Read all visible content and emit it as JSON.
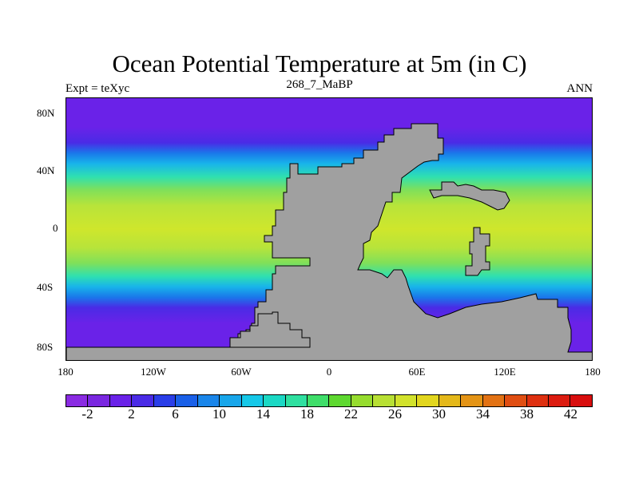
{
  "title": "Ocean Potential Temperature at 5m (in C)",
  "subtitle_left": "Expt = teXyc",
  "subtitle_center": "268_7_MaBP",
  "subtitle_right": "ANN",
  "y_ticks": [
    "80N",
    "40N",
    "0",
    "40S",
    "80S"
  ],
  "x_ticks": [
    "180",
    "120W",
    "60W",
    "0",
    "60E",
    "120E",
    "180"
  ],
  "colorbar": {
    "labels": [
      "-2",
      "2",
      "6",
      "10",
      "14",
      "18",
      "22",
      "26",
      "30",
      "34",
      "38",
      "42"
    ],
    "colors": [
      "#8a2be2",
      "#7a27e0",
      "#6a22e8",
      "#4a2be6",
      "#2a3ee8",
      "#1a60e8",
      "#1a86ea",
      "#18a6ea",
      "#16c8e8",
      "#1bd8c4",
      "#2fe0a0",
      "#3fde6a",
      "#5ed830",
      "#96dc2e",
      "#b8e034",
      "#d2e22c",
      "#e2d61e",
      "#e4b81a",
      "#e49416",
      "#e27214",
      "#e04e12",
      "#de3010",
      "#dc1c10",
      "#d80e0e"
    ]
  }
}
